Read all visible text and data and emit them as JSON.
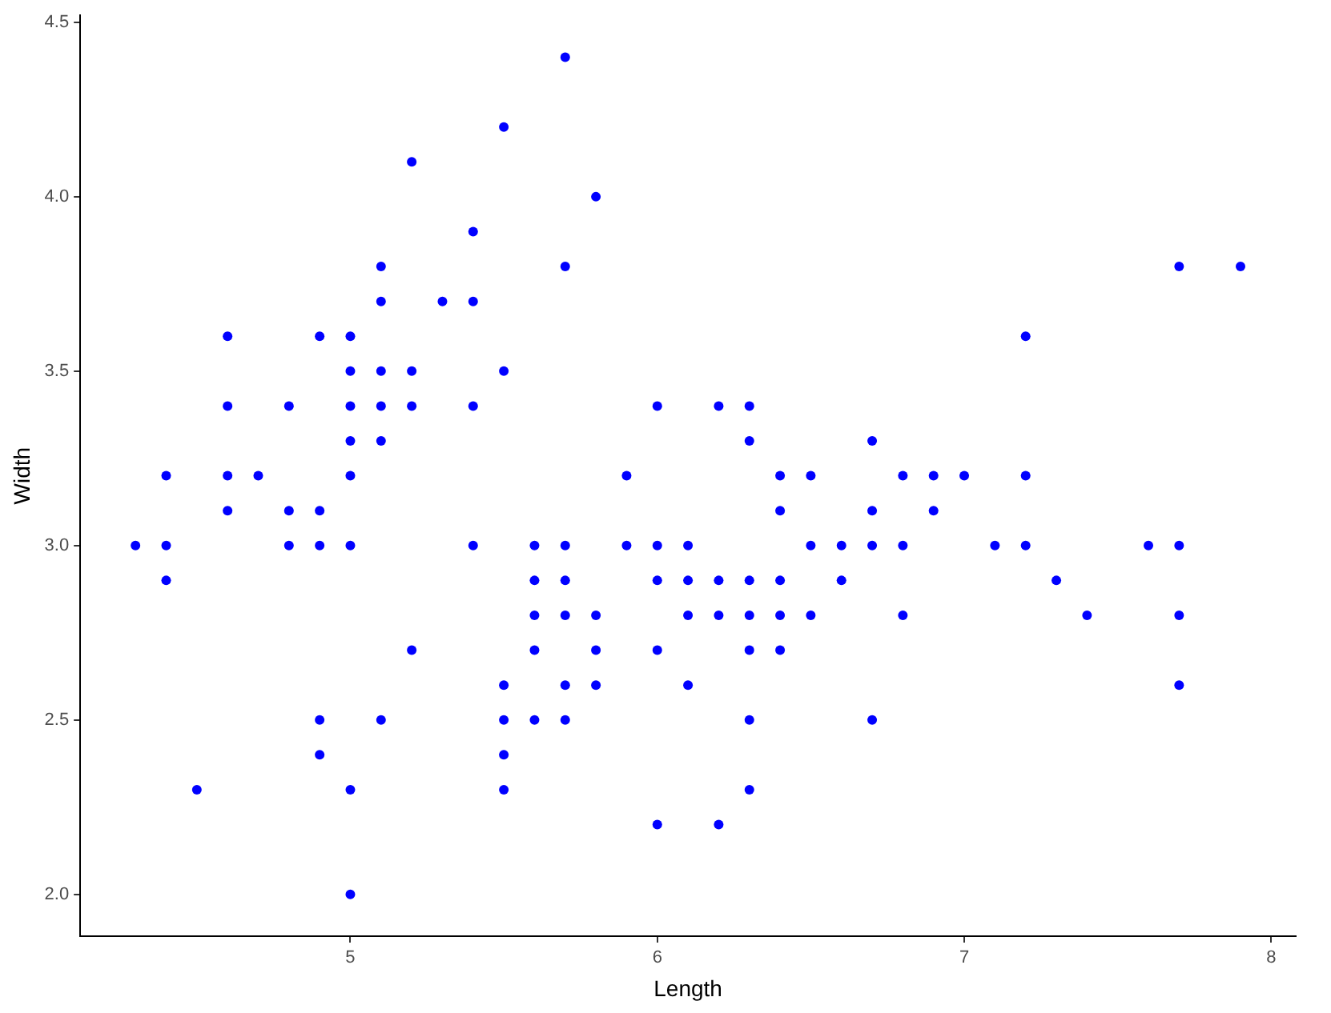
{
  "chart_data": {
    "type": "scatter",
    "xlabel": "Length",
    "ylabel": "Width",
    "marker": "circle",
    "grid": false,
    "legend": false,
    "xlim": [
      4.12,
      8.08
    ],
    "xticks": [
      5,
      6,
      7,
      8
    ],
    "ylim": [
      1.88,
      4.52
    ],
    "yticks": [
      {
        "value": 2,
        "label": "2.0"
      },
      {
        "value": 2.5,
        "label": "2.5"
      },
      {
        "value": 3,
        "label": "3.0"
      },
      {
        "value": 3.5,
        "label": "3.5"
      },
      {
        "value": 4,
        "label": "4.0"
      },
      {
        "value": 4.5,
        "label": "4.5"
      }
    ],
    "series": [
      {
        "color": "#0000ff",
        "x": [
          4.3,
          4.4,
          4.4,
          4.4,
          4.5,
          4.6,
          4.6,
          4.6,
          4.6,
          4.7,
          4.8,
          4.8,
          4.8,
          4.9,
          4.9,
          4.9,
          4.9,
          4.9,
          5.0,
          5.0,
          5.0,
          5.0,
          5.0,
          5.0,
          5.0,
          5.0,
          5.1,
          5.1,
          5.1,
          5.1,
          5.1,
          5.1,
          5.2,
          5.2,
          5.2,
          5.2,
          5.3,
          5.4,
          5.4,
          5.4,
          5.4,
          5.5,
          5.5,
          5.5,
          5.5,
          5.5,
          5.5,
          5.6,
          5.6,
          5.6,
          5.6,
          5.6,
          5.7,
          5.7,
          5.7,
          5.7,
          5.7,
          5.7,
          5.7,
          5.8,
          5.8,
          5.8,
          5.8,
          5.9,
          5.9,
          6.0,
          6.0,
          6.0,
          6.0,
          6.0,
          6.1,
          6.1,
          6.1,
          6.1,
          6.2,
          6.2,
          6.2,
          6.2,
          6.3,
          6.3,
          6.3,
          6.3,
          6.3,
          6.3,
          6.3,
          6.4,
          6.4,
          6.4,
          6.4,
          6.4,
          6.5,
          6.5,
          6.5,
          6.6,
          6.6,
          6.7,
          6.7,
          6.7,
          6.7,
          6.8,
          6.8,
          6.8,
          6.9,
          6.9,
          7.0,
          7.1,
          7.2,
          7.2,
          7.2,
          7.3,
          7.4,
          7.6,
          7.7,
          7.7,
          7.7,
          7.7,
          7.9
        ],
        "values": [
          3.0,
          2.9,
          3.0,
          3.2,
          2.3,
          3.1,
          3.4,
          3.6,
          3.2,
          3.2,
          3.4,
          3.0,
          3.1,
          3.0,
          3.1,
          3.6,
          2.4,
          2.5,
          3.6,
          3.4,
          3.0,
          3.2,
          3.5,
          3.3,
          2.0,
          2.3,
          3.5,
          3.8,
          3.7,
          3.3,
          3.4,
          2.5,
          3.5,
          3.4,
          4.1,
          2.7,
          3.7,
          3.9,
          3.7,
          3.4,
          3.0,
          4.2,
          3.5,
          2.3,
          2.4,
          2.5,
          2.6,
          2.9,
          3.0,
          2.5,
          2.7,
          2.8,
          4.4,
          3.8,
          2.8,
          2.6,
          3.0,
          2.9,
          2.5,
          4.0,
          2.7,
          2.6,
          2.8,
          3.0,
          3.2,
          2.2,
          2.9,
          2.7,
          3.4,
          3.0,
          2.9,
          2.8,
          3.0,
          2.6,
          2.2,
          2.9,
          2.8,
          3.4,
          3.3,
          2.5,
          2.3,
          2.9,
          2.7,
          2.8,
          3.4,
          3.2,
          2.9,
          2.7,
          2.8,
          3.1,
          2.8,
          3.0,
          3.2,
          2.9,
          3.0,
          3.1,
          3.0,
          2.5,
          3.3,
          2.8,
          3.0,
          3.2,
          3.1,
          3.2,
          3.2,
          3.0,
          3.6,
          3.2,
          3.0,
          2.9,
          2.8,
          3.0,
          3.8,
          2.6,
          2.8,
          3.0,
          3.8
        ]
      }
    ]
  }
}
